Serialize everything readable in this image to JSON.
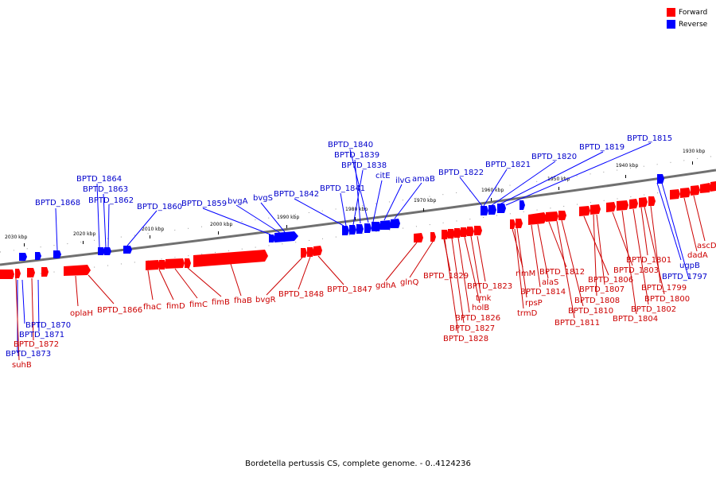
{
  "caption": "Bordetella pertussis CS, complete genome. - 0..4124236",
  "legend": [
    {
      "label": "Forward",
      "color": "#ff0000"
    },
    {
      "label": "Reverse",
      "color": "#0000ff"
    }
  ],
  "colors": {
    "forward": "#ff0000",
    "reverse": "#0000ff",
    "backbone": "#707070",
    "tick": "#000000"
  },
  "scale_labels": [
    "2030 kbp",
    "2020 kbp",
    "2010 kbp",
    "2000 kbp",
    "1990 kbp",
    "1980 kbp",
    "1970 kbp",
    "1960 kbp",
    "1950 kbp",
    "1940 kbp",
    "1930 kbp"
  ],
  "reverse_labels": [
    "BPTD_1815",
    "BPTD_1819",
    "BPTD_1820",
    "BPTD_1821",
    "BPTD_1822",
    "BPTD_1840",
    "BPTD_1839",
    "BPTD_1838",
    "citE",
    "ilvG",
    "amaB",
    "BPTD_1841",
    "BPTD_1842",
    "bvgS",
    "bvgA",
    "BPTD_1859",
    "BPTD_1860",
    "BPTD_1864",
    "BPTD_1863",
    "BPTD_1862",
    "BPTD_1868",
    "BPTD_1870",
    "BPTD_1871",
    "BPTD_1873",
    "ugpB",
    "BPTD_1797"
  ],
  "forward_labels": [
    "BPTD_1872",
    "suhB",
    "oplaH",
    "BPTD_1866",
    "fhaC",
    "fimD",
    "fimC",
    "fimB",
    "fhaB",
    "bvgR",
    "BPTD_1848",
    "BPTD_1847",
    "gdhA",
    "glnQ",
    "BPTD_1829",
    "BPTD_1823",
    "tmk",
    "holB",
    "BPTD_1826",
    "BPTD_1827",
    "BPTD_1828",
    "rimM",
    "rpsP",
    "trmD",
    "BPTD_1814",
    "alaS",
    "BPTD_1812",
    "BPTD_1810",
    "BPTD_1811",
    "BPTD_1806",
    "BPTD_1808",
    "BPTD_1807",
    "BPTD_1803",
    "BPTD_1804",
    "BPTD_1802",
    "BPTD_1801",
    "BPTD_1800",
    "BPTD_1799",
    "dadA",
    "ascD"
  ]
}
